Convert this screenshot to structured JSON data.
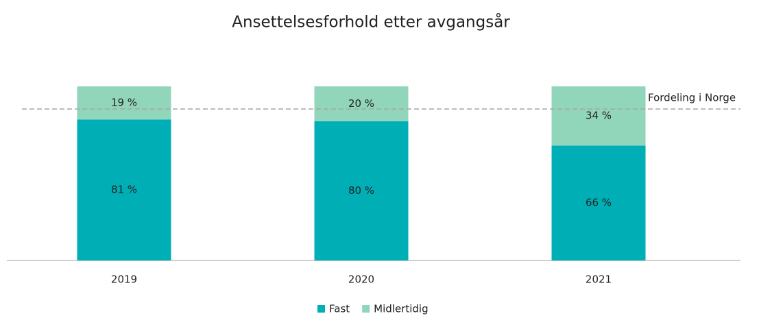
{
  "chart_data": {
    "type": "stacked_bar",
    "title": "Ansettelsesforhold etter avgangsår",
    "categories": [
      "2019",
      "2020",
      "2021"
    ],
    "series": [
      {
        "name": "Fast",
        "color": "#00aeb5",
        "values": [
          81,
          80,
          66
        ],
        "value_labels": [
          "81 %",
          "80 %",
          "66 %"
        ]
      },
      {
        "name": "Midlertidig",
        "color": "#91d6bb",
        "values": [
          19,
          20,
          34
        ],
        "value_labels": [
          "19 %",
          "20 %",
          "34 %"
        ]
      }
    ],
    "ylim": [
      0,
      100
    ],
    "reference_line": {
      "label": "Fordeling i Norge",
      "value": 87
    },
    "legend": "bottom"
  }
}
